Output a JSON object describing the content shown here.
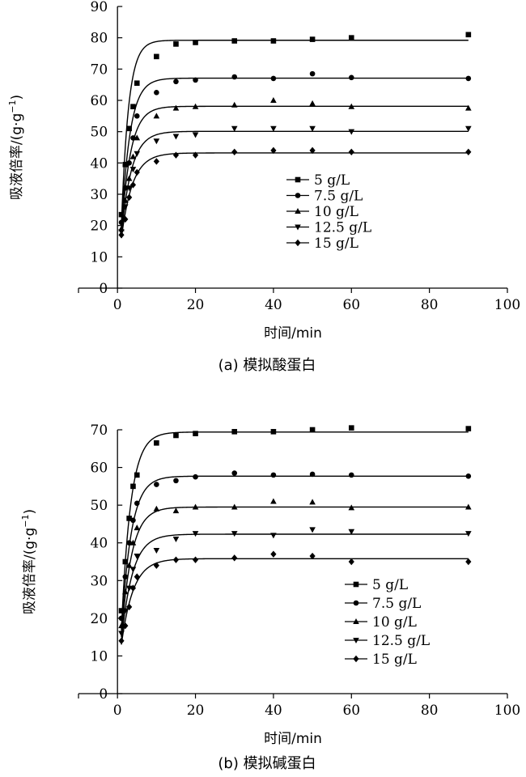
{
  "chart_data": [
    {
      "type": "scatter",
      "caption": "(a) 模拟酸蛋白",
      "xlabel": "时间/min",
      "ylabel_main": "吸液倍率/(g·g",
      "ylabel_sup": "−1",
      "ylabel_close": ")",
      "xlim": [
        -10,
        100
      ],
      "ylim": [
        0,
        90
      ],
      "xticks": [
        0,
        20,
        40,
        60,
        80,
        100
      ],
      "yticks": [
        0,
        10,
        20,
        30,
        40,
        50,
        60,
        70,
        80,
        90
      ],
      "legend_position": "center-right",
      "series": [
        {
          "name": "5 g/L",
          "marker": "square",
          "x": [
            1,
            2,
            3,
            4,
            5,
            10,
            15,
            20,
            30,
            40,
            50,
            60,
            90
          ],
          "y": [
            23.5,
            39.5,
            51,
            58,
            65.5,
            74,
            78,
            78.5,
            79,
            79,
            79.5,
            80,
            81
          ],
          "fit_plateau": 79.2,
          "fit_y0": 20,
          "fit_k": 0.55
        },
        {
          "name": "7.5 g/L",
          "marker": "circle",
          "x": [
            1,
            2,
            3,
            4,
            5,
            10,
            15,
            20,
            30,
            40,
            50,
            60,
            90
          ],
          "y": [
            21,
            32,
            40,
            48,
            55,
            62.5,
            66,
            66.5,
            67.5,
            67,
            68.5,
            67.3,
            67
          ],
          "fit_plateau": 67.1,
          "fit_y0": 19,
          "fit_k": 0.45
        },
        {
          "name": "10 g/L",
          "marker": "triangle-up",
          "x": [
            1,
            2,
            3,
            4,
            5,
            10,
            15,
            20,
            30,
            40,
            50,
            60,
            90
          ],
          "y": [
            19,
            28,
            35,
            42,
            48,
            55,
            57.5,
            58,
            58.5,
            60,
            59,
            58,
            57.5
          ],
          "fit_plateau": 58.1,
          "fit_y0": 18,
          "fit_k": 0.42
        },
        {
          "name": "12.5 g/L",
          "marker": "triangle-down",
          "x": [
            1,
            2,
            3,
            4,
            5,
            10,
            15,
            20,
            30,
            40,
            50,
            60,
            90
          ],
          "y": [
            18,
            26,
            32,
            38,
            43,
            47,
            48.5,
            49,
            51,
            51,
            51,
            50,
            51
          ],
          "fit_plateau": 50.1,
          "fit_y0": 17,
          "fit_k": 0.38
        },
        {
          "name": "15 g/L",
          "marker": "diamond",
          "x": [
            1,
            2,
            3,
            4,
            5,
            10,
            15,
            20,
            30,
            40,
            50,
            60,
            90
          ],
          "y": [
            17,
            22,
            29,
            33,
            37,
            40.5,
            42.5,
            42.5,
            43.5,
            44,
            44,
            43.5,
            43.5
          ],
          "fit_plateau": 43.2,
          "fit_y0": 16,
          "fit_k": 0.35
        }
      ]
    },
    {
      "type": "scatter",
      "caption": "(b) 模拟碱蛋白",
      "xlabel": "时间/min",
      "ylabel_main": "吸液倍率/(g·g",
      "ylabel_sup": "−1",
      "ylabel_close": ")",
      "xlim": [
        -10,
        100
      ],
      "ylim": [
        0,
        70
      ],
      "xticks": [
        0,
        20,
        40,
        60,
        80,
        100
      ],
      "yticks": [
        0,
        10,
        20,
        30,
        40,
        50,
        60,
        70
      ],
      "legend_position": "bottom-right",
      "series": [
        {
          "name": "5 g/L",
          "marker": "square",
          "x": [
            1,
            2,
            3,
            4,
            5,
            10,
            15,
            20,
            30,
            40,
            50,
            60,
            90
          ],
          "y": [
            22,
            35,
            46.5,
            55,
            58,
            66.5,
            68.5,
            69,
            69.5,
            69.5,
            70,
            70.5,
            70.3
          ],
          "fit_plateau": 69.4,
          "fit_y0": 17,
          "fit_k": 0.42
        },
        {
          "name": "7.5 g/L",
          "marker": "circle",
          "x": [
            1,
            2,
            3,
            4,
            5,
            10,
            15,
            20,
            30,
            40,
            50,
            60,
            90
          ],
          "y": [
            20,
            31,
            40,
            46,
            50.5,
            55.5,
            56.5,
            57.5,
            58.5,
            58,
            58.2,
            58,
            57.7
          ],
          "fit_plateau": 57.7,
          "fit_y0": 16,
          "fit_k": 0.4
        },
        {
          "name": "10 g/L",
          "marker": "triangle-up",
          "x": [
            1,
            2,
            3,
            4,
            5,
            10,
            15,
            20,
            30,
            40,
            50,
            60,
            90
          ],
          "y": [
            18,
            27,
            34,
            40,
            44,
            49,
            48.5,
            49.5,
            49.5,
            51,
            50.8,
            49.3,
            49.5
          ],
          "fit_plateau": 49.5,
          "fit_y0": 15,
          "fit_k": 0.38
        },
        {
          "name": "12.5 g/L",
          "marker": "triangle-down",
          "x": [
            1,
            2,
            3,
            4,
            5,
            10,
            15,
            20,
            30,
            40,
            50,
            60,
            90
          ],
          "y": [
            16,
            22,
            28,
            33,
            36.5,
            38,
            41,
            42.5,
            42.5,
            42,
            43.5,
            43,
            42.5
          ],
          "fit_plateau": 42.3,
          "fit_y0": 14,
          "fit_k": 0.35
        },
        {
          "name": "15 g/L",
          "marker": "diamond",
          "x": [
            1,
            2,
            3,
            4,
            5,
            10,
            15,
            20,
            30,
            40,
            50,
            60,
            90
          ],
          "y": [
            14,
            18,
            23,
            28,
            31,
            34,
            35.5,
            35.5,
            36,
            37,
            36.5,
            35,
            35
          ],
          "fit_plateau": 35.8,
          "fit_y0": 13,
          "fit_k": 0.33
        }
      ]
    }
  ]
}
